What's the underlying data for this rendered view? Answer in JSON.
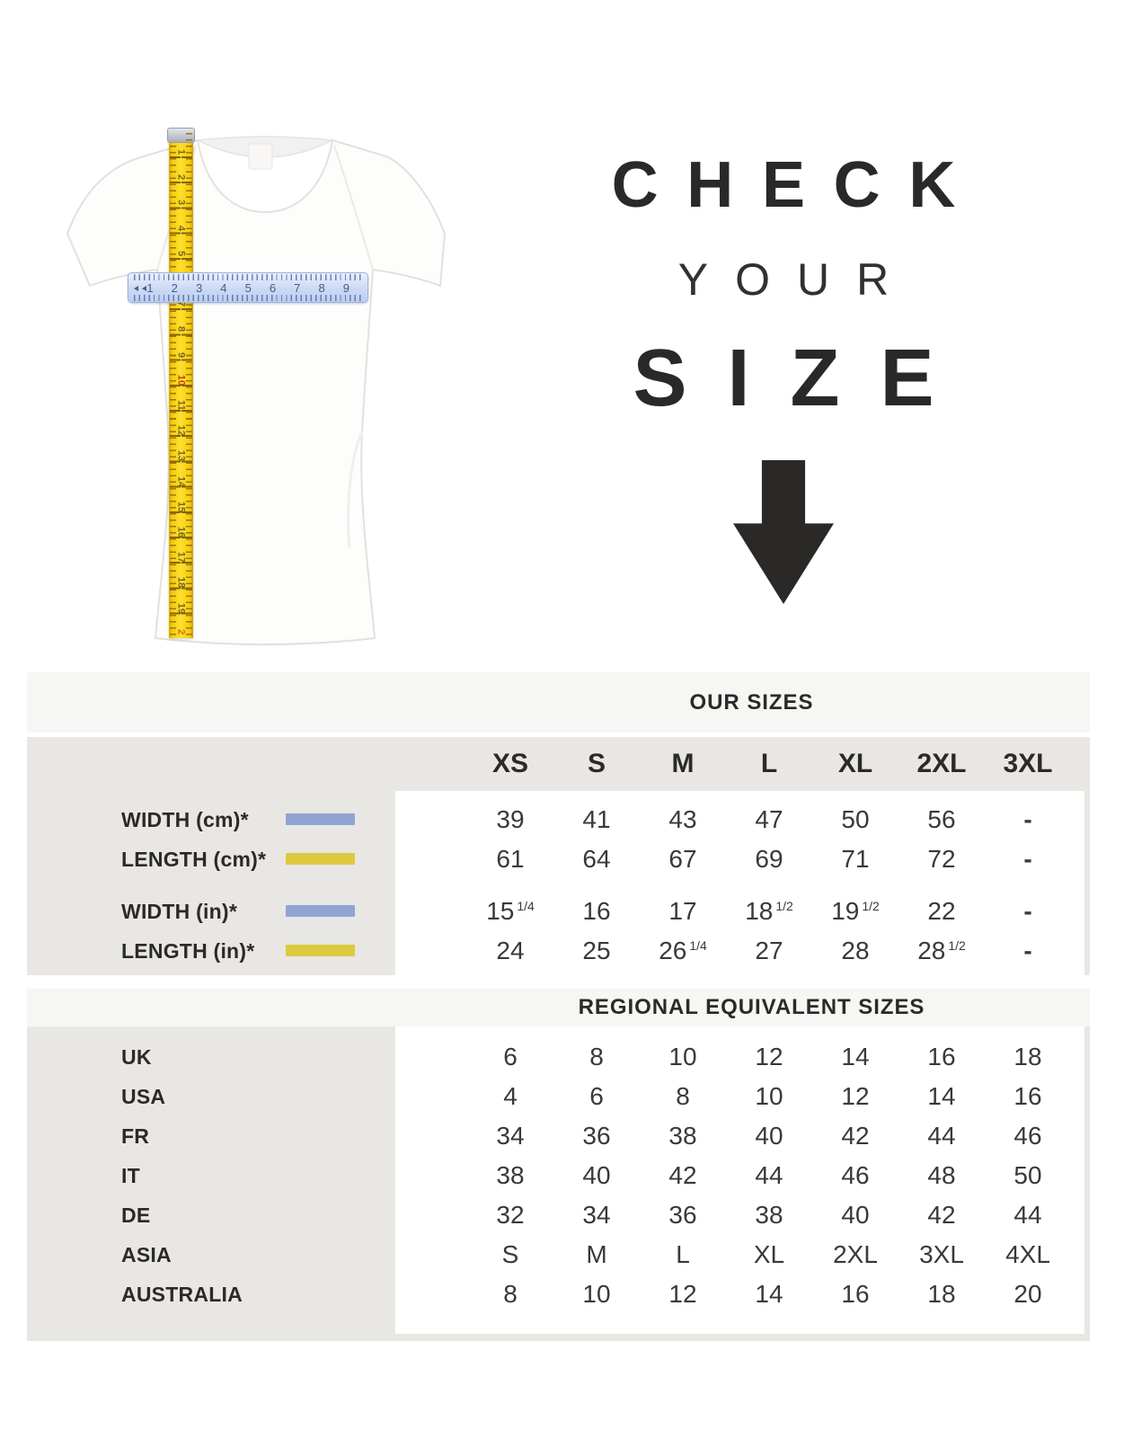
{
  "hero": {
    "line1": "CHECK",
    "line2": "YOUR",
    "line3": "SIZE",
    "arrow_icon": "down-arrow"
  },
  "figure": {
    "subject": "white womens t-shirt with measuring tapes",
    "vertical_tape": {
      "numbers": [
        "1",
        "2",
        "3",
        "4",
        "5",
        "6",
        "7",
        "8",
        "9",
        "10",
        "11",
        "12",
        "13",
        "14",
        "15",
        "16",
        "17",
        "18",
        "19"
      ],
      "highlight_number": "10",
      "end_number": "2"
    },
    "horizontal_ruler": {
      "numbers": [
        "1",
        "2",
        "3",
        "4",
        "5",
        "6",
        "7",
        "8",
        "9"
      ]
    }
  },
  "table": {
    "our_sizes_header": "OUR SIZES",
    "size_columns": [
      "XS",
      "S",
      "M",
      "L",
      "XL",
      "2XL",
      "3XL"
    ],
    "measurement_rows": [
      {
        "label": "WIDTH (cm)*",
        "swatch": "width",
        "values": [
          "39",
          "41",
          "43",
          "47",
          "50",
          "56",
          "-"
        ]
      },
      {
        "label": "LENGTH (cm)*",
        "swatch": "length",
        "values": [
          "61",
          "64",
          "67",
          "69",
          "71",
          "72",
          "-"
        ]
      },
      {
        "label": "WIDTH (in)*",
        "swatch": "width",
        "values": [
          {
            "n": "15",
            "f": "1/4"
          },
          "16",
          "17",
          {
            "n": "18",
            "f": "1/2"
          },
          {
            "n": "19",
            "f": "1/2"
          },
          "22",
          "-"
        ]
      },
      {
        "label": "LENGTH (in)*",
        "swatch": "length",
        "values": [
          "24",
          "25",
          {
            "n": "26",
            "f": "1/4"
          },
          "27",
          "28",
          {
            "n": "28",
            "f": "1/2"
          },
          "-"
        ]
      }
    ],
    "regional_header": "REGIONAL EQUIVALENT SIZES",
    "regional_rows": [
      {
        "label": "UK",
        "values": [
          "6",
          "8",
          "10",
          "12",
          "14",
          "16",
          "18"
        ]
      },
      {
        "label": "USA",
        "values": [
          "4",
          "6",
          "8",
          "10",
          "12",
          "14",
          "16"
        ]
      },
      {
        "label": "FR",
        "values": [
          "34",
          "36",
          "38",
          "40",
          "42",
          "44",
          "46"
        ]
      },
      {
        "label": "IT",
        "values": [
          "38",
          "40",
          "42",
          "44",
          "46",
          "48",
          "50"
        ]
      },
      {
        "label": "DE",
        "values": [
          "32",
          "34",
          "36",
          "38",
          "40",
          "42",
          "44"
        ]
      },
      {
        "label": "ASIA",
        "values": [
          "S",
          "M",
          "L",
          "XL",
          "2XL",
          "3XL",
          "4XL"
        ]
      },
      {
        "label": "AUSTRALIA",
        "values": [
          "8",
          "10",
          "12",
          "14",
          "16",
          "18",
          "20"
        ]
      }
    ]
  },
  "colors": {
    "width_swatch": "#91a3d3",
    "length_swatch": "#dcc93e",
    "tape_yellow": "#f3cc0a",
    "tape_number_red": "#c43524",
    "ruler_blue": "#ccd9f3",
    "text_dark": "#2b2a28",
    "band_bg": "#f6f6f4",
    "section_bg": "#e8e7e4"
  }
}
